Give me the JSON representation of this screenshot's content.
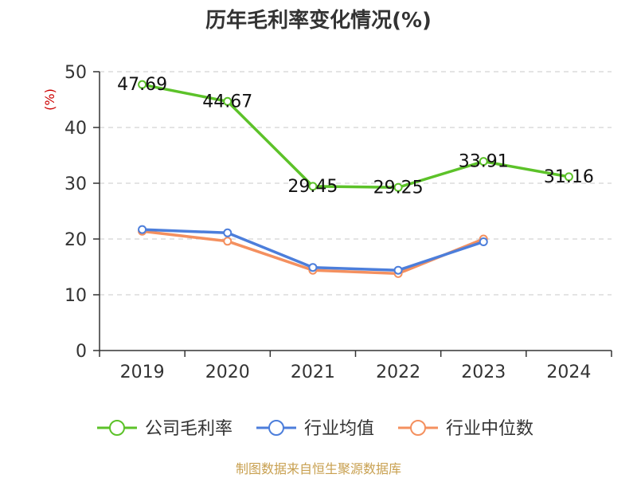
{
  "chart_data": {
    "type": "line",
    "title": "历年毛利率变化情况(%)",
    "ylabel": "(%)",
    "categories": [
      "2019",
      "2020",
      "2021",
      "2022",
      "2023",
      "2024"
    ],
    "ylim": [
      0,
      50
    ],
    "yticks": [
      0,
      10,
      20,
      30,
      40,
      50
    ],
    "grid": true,
    "legend_position": "bottom",
    "series": [
      {
        "name": "公司毛利率",
        "color": "#5cc229",
        "values": [
          47.69,
          44.67,
          29.45,
          29.25,
          33.91,
          31.16
        ],
        "show_labels": true
      },
      {
        "name": "行业均值",
        "color": "#4c7edb",
        "values": [
          21.7,
          21.1,
          14.9,
          14.4,
          19.5,
          null
        ],
        "show_labels": false
      },
      {
        "name": "行业中位数",
        "color": "#f4905f",
        "values": [
          21.4,
          19.6,
          14.4,
          13.8,
          20.0,
          null
        ],
        "show_labels": false
      }
    ],
    "value_labels": [
      "47.69",
      "44.67",
      "29.45",
      "29.25",
      "33.91",
      "31.16"
    ]
  },
  "source": "制图数据来自恒生聚源数据库"
}
